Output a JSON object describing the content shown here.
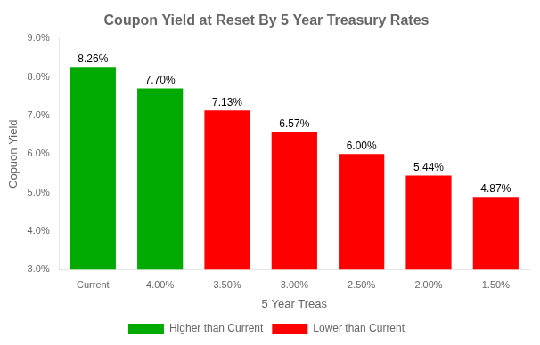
{
  "chart_data": {
    "type": "bar",
    "title": "Coupon Yield at Reset By 5 Year Treasury Rates",
    "categories": [
      "Current",
      "4.00%",
      "3.50%",
      "3.00%",
      "2.50%",
      "2.00%",
      "1.50%"
    ],
    "series": [
      {
        "name": "Higher than Current",
        "color": "#00aa00",
        "values": [
          8.26,
          7.7,
          null,
          null,
          null,
          null,
          null
        ],
        "value_labels": [
          "8.26%",
          "7.70%",
          null,
          null,
          null,
          null,
          null
        ]
      },
      {
        "name": "Lower than Current",
        "color": "#ff0000",
        "values": [
          null,
          null,
          7.13,
          6.57,
          6.0,
          5.44,
          4.87
        ],
        "value_labels": [
          null,
          null,
          "7.13%",
          "6.57%",
          "6.00%",
          "5.44%",
          "4.87%"
        ]
      }
    ],
    "xlabel": "5 Year Treas",
    "ylabel": "Copuon Yield",
    "ylim": [
      3.0,
      9.0
    ],
    "yticks": [
      {
        "value": 3.0,
        "label": "3.0%"
      },
      {
        "value": 4.0,
        "label": "4.0%"
      },
      {
        "value": 5.0,
        "label": "5.0%"
      },
      {
        "value": 6.0,
        "label": "6.0%"
      },
      {
        "value": 7.0,
        "label": "7.0%"
      },
      {
        "value": 8.0,
        "label": "8.0%"
      },
      {
        "value": 9.0,
        "label": "9.0%"
      }
    ],
    "grid": false,
    "data_labels": true,
    "legend": "bottom"
  }
}
